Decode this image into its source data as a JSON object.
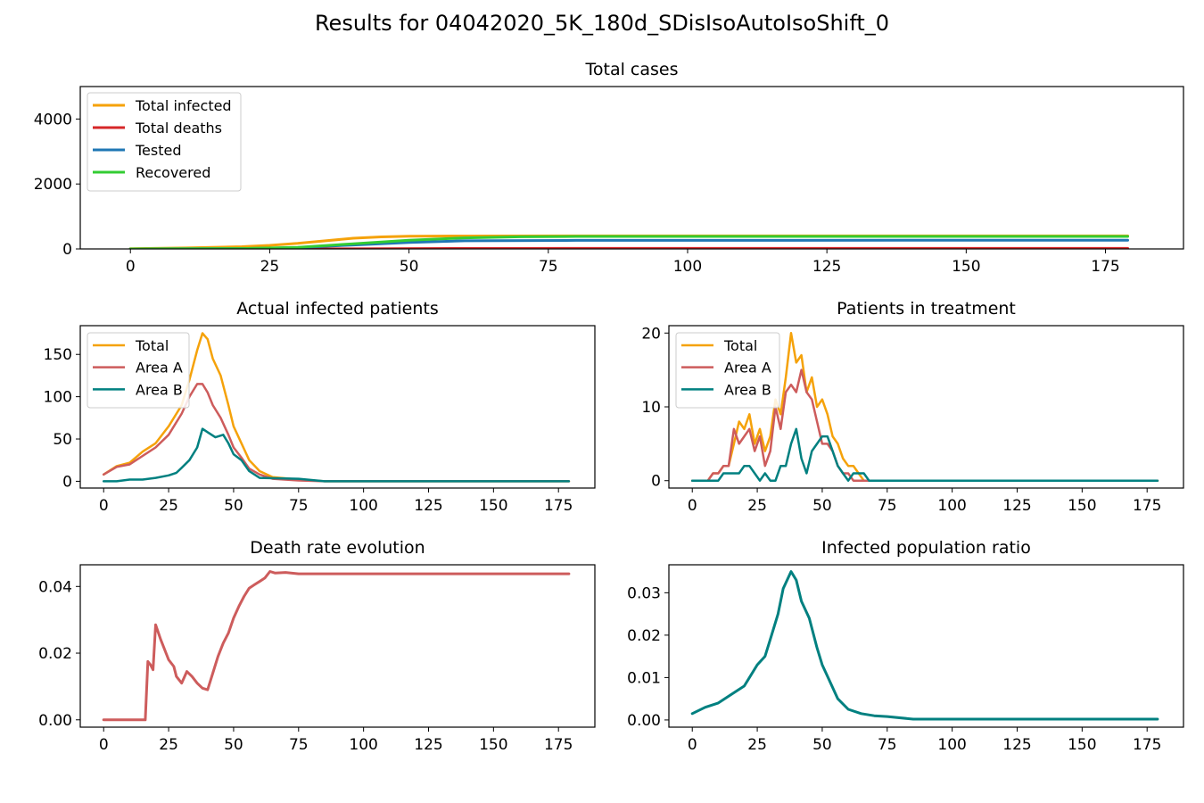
{
  "title": "Results for 04042020_5K_180d_SDisIsoAutoIsoShift_0",
  "colors": {
    "total": "#f5a20a",
    "deaths": "#d62728",
    "tested": "#1f77b4",
    "recovered": "#33cc33",
    "area_a": "#cd5c5c",
    "area_b": "#008080",
    "death_rate": "#cd5c5c",
    "ratio": "#008080"
  },
  "chart_data": [
    {
      "id": "total-cases",
      "type": "line",
      "title": "Total cases",
      "xlim": [
        -9,
        189
      ],
      "ylim": [
        0,
        5000
      ],
      "xticks": [
        0,
        25,
        50,
        75,
        100,
        125,
        150,
        175
      ],
      "yticks": [
        0,
        2000,
        4000
      ],
      "legend": "top-left",
      "series": [
        {
          "name": "Total infected",
          "color": "#f5a20a",
          "x": [
            0,
            10,
            20,
            25,
            30,
            35,
            40,
            45,
            50,
            55,
            60,
            80,
            100,
            179
          ],
          "y": [
            5,
            30,
            70,
            110,
            170,
            250,
            330,
            370,
            390,
            395,
            398,
            400,
            400,
            400
          ]
        },
        {
          "name": "Total deaths",
          "color": "#d62728",
          "x": [
            0,
            20,
            40,
            60,
            80,
            179
          ],
          "y": [
            0,
            1,
            3,
            14,
            17,
            17
          ]
        },
        {
          "name": "Tested",
          "color": "#1f77b4",
          "x": [
            0,
            20,
            30,
            40,
            50,
            60,
            80,
            179
          ],
          "y": [
            0,
            10,
            40,
            120,
            200,
            250,
            265,
            270
          ]
        },
        {
          "name": "Recovered",
          "color": "#33cc33",
          "x": [
            0,
            20,
            30,
            40,
            50,
            60,
            70,
            80,
            179
          ],
          "y": [
            0,
            10,
            50,
            160,
            270,
            340,
            375,
            385,
            385
          ]
        }
      ]
    },
    {
      "id": "actual-infected",
      "type": "line",
      "title": "Actual infected patients",
      "xlim": [
        -9,
        189
      ],
      "ylim": [
        -8,
        184
      ],
      "xticks": [
        0,
        25,
        50,
        75,
        100,
        125,
        150,
        175
      ],
      "yticks": [
        0,
        50,
        100,
        150
      ],
      "legend": "top-left",
      "series": [
        {
          "name": "Total",
          "color": "#f5a20a",
          "x": [
            0,
            5,
            10,
            15,
            20,
            25,
            30,
            33,
            36,
            38,
            40,
            42,
            45,
            48,
            50,
            53,
            56,
            60,
            65,
            75,
            85,
            179
          ],
          "y": [
            8,
            18,
            22,
            35,
            45,
            65,
            90,
            120,
            155,
            175,
            168,
            145,
            125,
            90,
            65,
            45,
            25,
            12,
            5,
            2,
            0,
            0
          ]
        },
        {
          "name": "Area A",
          "color": "#cd5c5c",
          "x": [
            0,
            5,
            10,
            15,
            20,
            25,
            30,
            33,
            36,
            38,
            40,
            42,
            45,
            48,
            50,
            53,
            56,
            60,
            65,
            75,
            85,
            179
          ],
          "y": [
            8,
            17,
            20,
            30,
            40,
            55,
            80,
            100,
            115,
            115,
            105,
            90,
            75,
            55,
            40,
            28,
            15,
            8,
            3,
            1,
            0,
            0
          ]
        },
        {
          "name": "Area B",
          "color": "#008080",
          "x": [
            0,
            5,
            10,
            15,
            20,
            25,
            28,
            30,
            33,
            36,
            38,
            40,
            43,
            46,
            48,
            50,
            53,
            56,
            60,
            75,
            85,
            179
          ],
          "y": [
            0,
            0,
            2,
            2,
            4,
            7,
            10,
            16,
            25,
            40,
            62,
            58,
            52,
            55,
            45,
            32,
            25,
            12,
            4,
            3,
            0,
            0
          ]
        }
      ]
    },
    {
      "id": "in-treatment",
      "type": "line",
      "title": "Patients in treatment",
      "xlim": [
        -9,
        189
      ],
      "ylim": [
        -1,
        21
      ],
      "xticks": [
        0,
        25,
        50,
        75,
        100,
        125,
        150,
        175
      ],
      "yticks": [
        0,
        10,
        20
      ],
      "legend": "top-left",
      "series": [
        {
          "name": "Total",
          "color": "#f5a20a",
          "x": [
            0,
            6,
            8,
            10,
            12,
            14,
            16,
            18,
            20,
            22,
            24,
            26,
            28,
            30,
            32,
            34,
            36,
            38,
            40,
            42,
            44,
            46,
            48,
            50,
            52,
            54,
            56,
            58,
            60,
            62,
            64,
            66,
            68,
            70,
            179
          ],
          "y": [
            0,
            0,
            1,
            1,
            2,
            2,
            5,
            8,
            7,
            9,
            5,
            7,
            4,
            6,
            11,
            9,
            14,
            20,
            16,
            17,
            12,
            14,
            10,
            11,
            9,
            6,
            5,
            3,
            2,
            2,
            1,
            0,
            0,
            0,
            0
          ]
        },
        {
          "name": "Area A",
          "color": "#cd5c5c",
          "x": [
            0,
            6,
            8,
            10,
            12,
            14,
            16,
            18,
            20,
            22,
            24,
            26,
            28,
            30,
            32,
            34,
            36,
            38,
            40,
            42,
            44,
            46,
            48,
            50,
            52,
            54,
            56,
            58,
            60,
            62,
            64,
            179
          ],
          "y": [
            0,
            0,
            1,
            1,
            2,
            2,
            7,
            5,
            6,
            7,
            4,
            6,
            2,
            4,
            10,
            7,
            12,
            13,
            12,
            15,
            12,
            11,
            8,
            5,
            5,
            4,
            2,
            1,
            1,
            0,
            0,
            0
          ]
        },
        {
          "name": "Area B",
          "color": "#008080",
          "x": [
            0,
            10,
            12,
            18,
            20,
            22,
            24,
            26,
            28,
            30,
            32,
            34,
            36,
            38,
            40,
            42,
            44,
            46,
            48,
            50,
            52,
            54,
            56,
            58,
            60,
            62,
            64,
            66,
            68,
            70,
            179
          ],
          "y": [
            0,
            0,
            1,
            1,
            2,
            2,
            1,
            0,
            1,
            0,
            0,
            2,
            2,
            5,
            7,
            3,
            1,
            4,
            5,
            6,
            6,
            4,
            2,
            1,
            0,
            1,
            1,
            1,
            0,
            0,
            0
          ]
        }
      ]
    },
    {
      "id": "death-rate",
      "type": "line",
      "title": "Death rate evolution",
      "xlim": [
        -9,
        189
      ],
      "ylim": [
        -0.0022,
        0.0465
      ],
      "xticks": [
        0,
        25,
        50,
        75,
        100,
        125,
        150,
        175
      ],
      "yticks": [
        0.0,
        0.02,
        0.04
      ],
      "yticklabels": [
        "0.00",
        "0.02",
        "0.04"
      ],
      "series": [
        {
          "name": "",
          "color": "#cd5c5c",
          "x": [
            0,
            16,
            17,
            18,
            19,
            20,
            22,
            25,
            27,
            28,
            30,
            32,
            34,
            36,
            38,
            40,
            42,
            44,
            46,
            48,
            50,
            52,
            54,
            56,
            58,
            60,
            62,
            64,
            66,
            70,
            75,
            100,
            179
          ],
          "y": [
            0,
            0,
            0.0175,
            0.0165,
            0.015,
            0.0285,
            0.024,
            0.018,
            0.016,
            0.013,
            0.011,
            0.0145,
            0.013,
            0.011,
            0.0095,
            0.009,
            0.014,
            0.019,
            0.023,
            0.026,
            0.0305,
            0.034,
            0.037,
            0.0395,
            0.0405,
            0.0415,
            0.0425,
            0.0445,
            0.044,
            0.0442,
            0.0438,
            0.0438,
            0.0438
          ]
        }
      ]
    },
    {
      "id": "infected-ratio",
      "type": "line",
      "title": "Infected population ratio",
      "xlim": [
        -9,
        189
      ],
      "ylim": [
        -0.0017,
        0.0366
      ],
      "xticks": [
        0,
        25,
        50,
        75,
        100,
        125,
        150,
        175
      ],
      "yticks": [
        0.0,
        0.01,
        0.02,
        0.03
      ],
      "yticklabels": [
        "0.00",
        "0.01",
        "0.02",
        "0.03"
      ],
      "series": [
        {
          "name": "",
          "color": "#008080",
          "x": [
            0,
            5,
            10,
            15,
            20,
            25,
            28,
            30,
            33,
            35,
            38,
            40,
            42,
            45,
            48,
            50,
            53,
            56,
            60,
            65,
            70,
            75,
            85,
            100,
            179
          ],
          "y": [
            0.0015,
            0.003,
            0.004,
            0.006,
            0.008,
            0.013,
            0.015,
            0.019,
            0.025,
            0.031,
            0.035,
            0.033,
            0.028,
            0.024,
            0.017,
            0.013,
            0.009,
            0.005,
            0.0025,
            0.0015,
            0.001,
            0.0008,
            0.0002,
            0.0002,
            0.0002
          ]
        }
      ]
    }
  ]
}
